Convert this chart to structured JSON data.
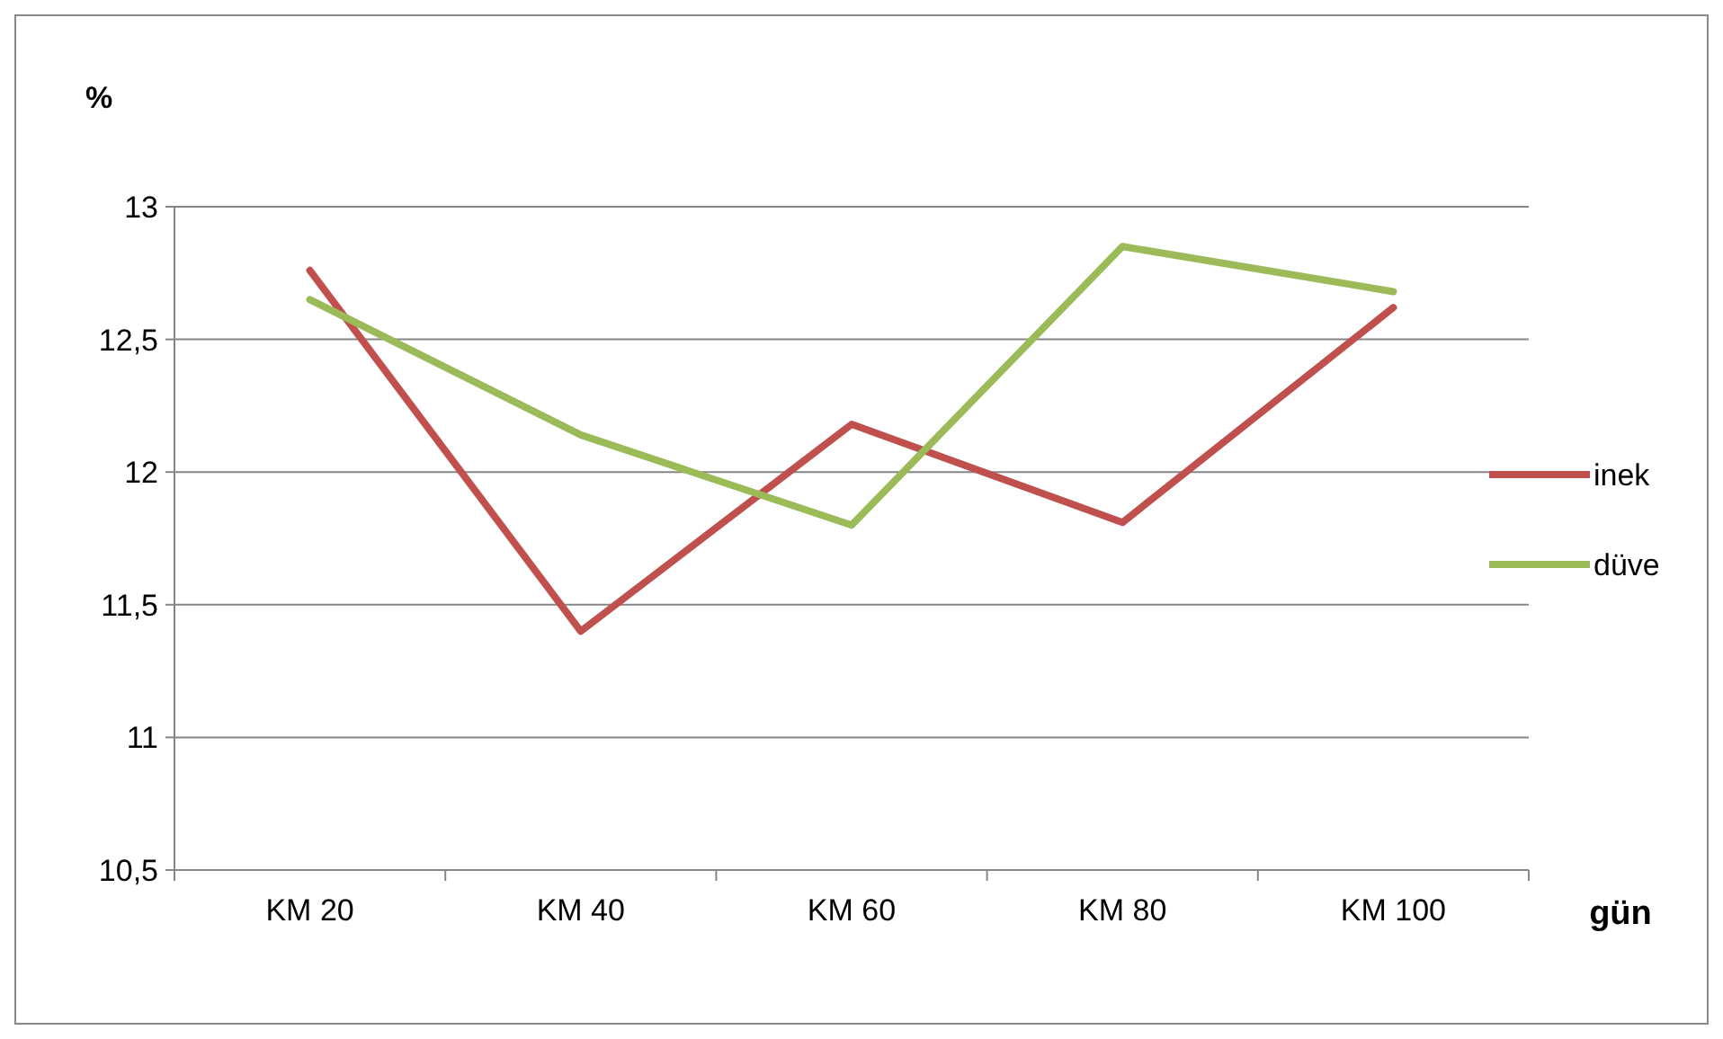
{
  "chart_data": {
    "type": "line",
    "ylabel": "%",
    "xlabel": "gün",
    "categories": [
      "KM 20",
      "KM 40",
      "KM 60",
      "KM 80",
      "KM 100"
    ],
    "series": [
      {
        "name": "inek",
        "color": "#c0504d",
        "values": [
          12.76,
          11.4,
          12.18,
          11.81,
          12.62
        ]
      },
      {
        "name": "düve",
        "color": "#9bbb59",
        "values": [
          12.65,
          12.14,
          11.8,
          12.85,
          12.68
        ]
      }
    ],
    "ylim": [
      10.5,
      13
    ],
    "yticks": [
      {
        "value": 10.5,
        "label": "10,5"
      },
      {
        "value": 11,
        "label": "11"
      },
      {
        "value": 11.5,
        "label": "11,5"
      },
      {
        "value": 12,
        "label": "12"
      },
      {
        "value": 12.5,
        "label": "12,5"
      },
      {
        "value": 13,
        "label": "13"
      }
    ],
    "grid": "y",
    "legend": "right",
    "marker": "none",
    "line_style": "solid"
  }
}
